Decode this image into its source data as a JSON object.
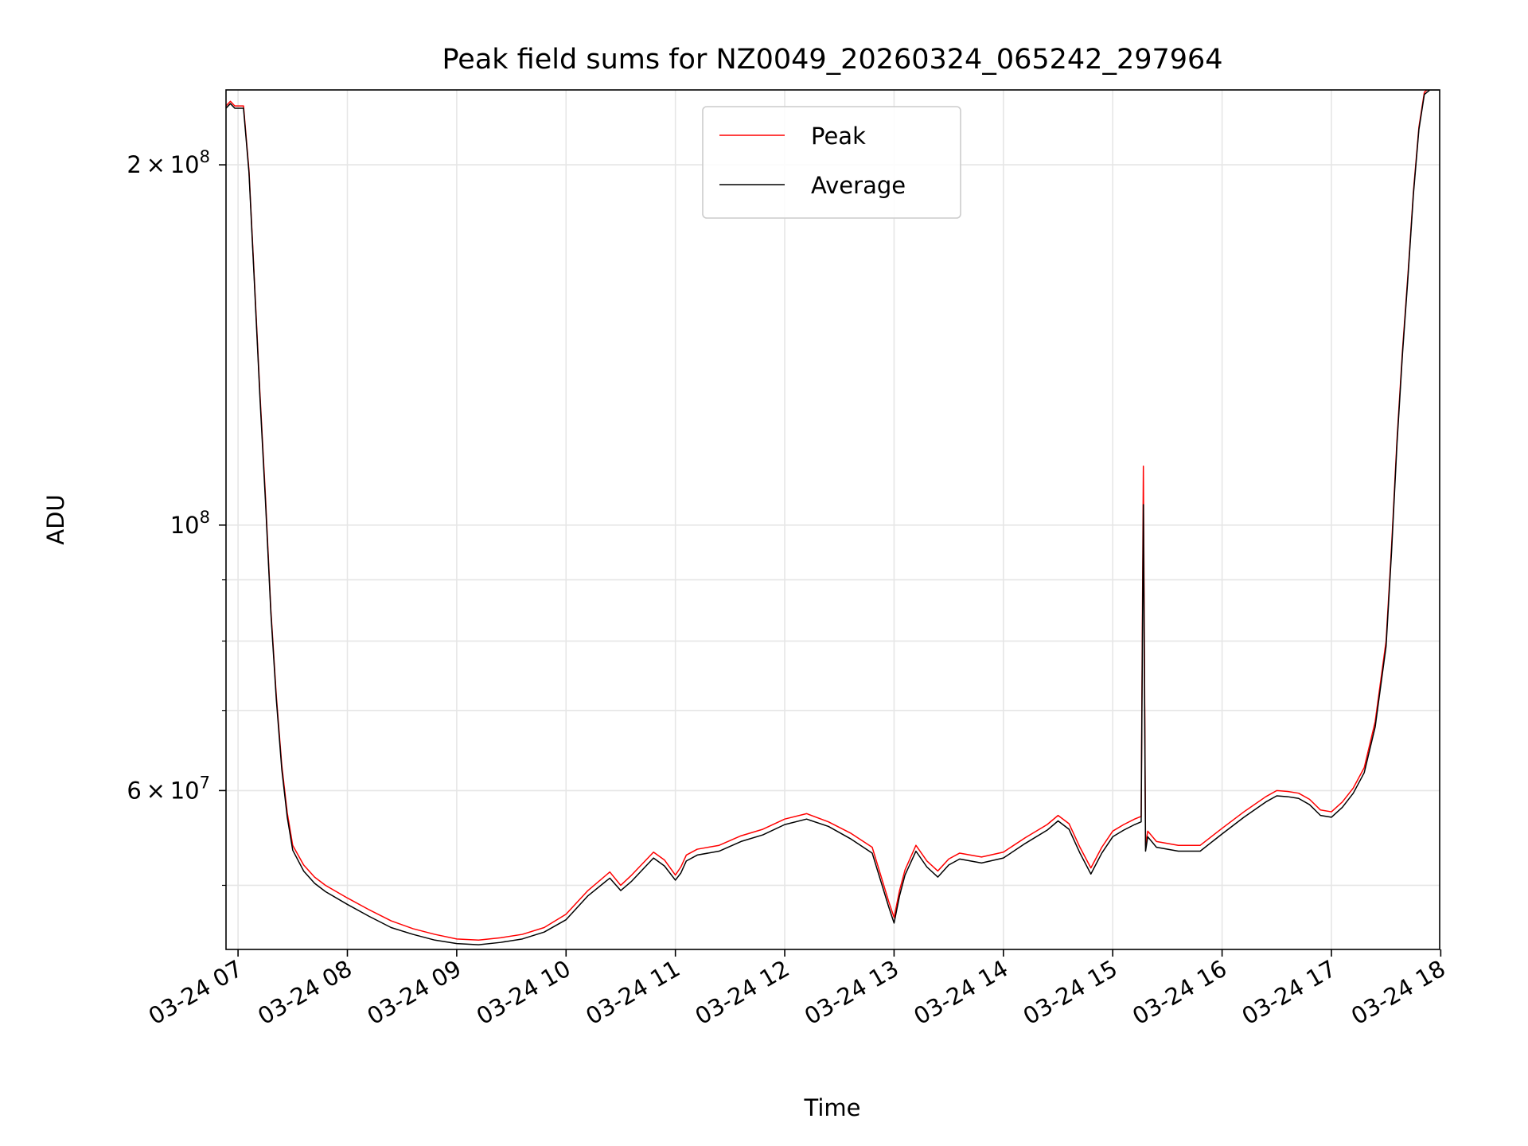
{
  "chart_data": {
    "type": "line",
    "title": "Peak field sums for NZ0049_20260324_065242_297964",
    "xlabel": "Time",
    "ylabel": "ADU",
    "yscale": "log",
    "grid": true,
    "legend_position": "upper-center",
    "xlim": [
      6.89,
      17.99
    ],
    "ylim": [
      44200000,
      231000000
    ],
    "x_unit": "hour of 2026-03-24",
    "x_ticks": [
      {
        "value": 7,
        "label": "03-24 07"
      },
      {
        "value": 8,
        "label": "03-24 08"
      },
      {
        "value": 9,
        "label": "03-24 09"
      },
      {
        "value": 10,
        "label": "03-24 10"
      },
      {
        "value": 11,
        "label": "03-24 11"
      },
      {
        "value": 12,
        "label": "03-24 12"
      },
      {
        "value": 13,
        "label": "03-24 13"
      },
      {
        "value": 14,
        "label": "03-24 14"
      },
      {
        "value": 15,
        "label": "03-24 15"
      },
      {
        "value": 16,
        "label": "03-24 16"
      },
      {
        "value": 17,
        "label": "03-24 17"
      },
      {
        "value": 18,
        "label": "03-24 18"
      }
    ],
    "y_major_ticks": [
      {
        "value": 60000000,
        "mantissa": "6",
        "base": "10",
        "exp": "7"
      },
      {
        "value": 100000000,
        "mantissa": "",
        "base": "10",
        "exp": "8"
      },
      {
        "value": 200000000,
        "mantissa": "2",
        "base": "10",
        "exp": "8"
      }
    ],
    "y_minor_ticks": [
      50000000,
      70000000,
      80000000,
      90000000
    ],
    "series": [
      {
        "name": "Peak",
        "color": "#ff0000",
        "x": [
          6.89,
          6.93,
          6.97,
          7.05,
          7.1,
          7.15,
          7.2,
          7.25,
          7.3,
          7.35,
          7.4,
          7.45,
          7.5,
          7.6,
          7.7,
          7.8,
          8.0,
          8.2,
          8.4,
          8.6,
          8.8,
          9.0,
          9.2,
          9.4,
          9.6,
          9.8,
          10.0,
          10.2,
          10.4,
          10.5,
          10.6,
          10.8,
          10.9,
          11.0,
          11.05,
          11.1,
          11.2,
          11.4,
          11.6,
          11.8,
          12.0,
          12.2,
          12.4,
          12.6,
          12.8,
          12.95,
          13.0,
          13.05,
          13.1,
          13.2,
          13.3,
          13.4,
          13.5,
          13.6,
          13.8,
          14.0,
          14.2,
          14.4,
          14.5,
          14.6,
          14.7,
          14.8,
          14.9,
          15.0,
          15.1,
          15.2,
          15.26,
          15.28,
          15.3,
          15.32,
          15.4,
          15.6,
          15.8,
          16.0,
          16.2,
          16.4,
          16.5,
          16.6,
          16.7,
          16.8,
          16.9,
          17.0,
          17.1,
          17.2,
          17.3,
          17.4,
          17.5,
          17.55,
          17.6,
          17.65,
          17.7,
          17.75,
          17.8,
          17.85,
          17.9,
          17.99
        ],
        "y": [
          224000000,
          226000000,
          224000000,
          224000000,
          198000000,
          160000000,
          129000000,
          106000000,
          85000000,
          72000000,
          63000000,
          57500000,
          54000000,
          52000000,
          50800000,
          50000000,
          48800000,
          47700000,
          46700000,
          46000000,
          45500000,
          45100000,
          45000000,
          45200000,
          45500000,
          46100000,
          47300000,
          49500000,
          51300000,
          50000000,
          51000000,
          53300000,
          52500000,
          51000000,
          51800000,
          53000000,
          53600000,
          54000000,
          55000000,
          55700000,
          56800000,
          57400000,
          56500000,
          55300000,
          53800000,
          48500000,
          47000000,
          49500000,
          51500000,
          54000000,
          52400000,
          51400000,
          52600000,
          53200000,
          52800000,
          53300000,
          54800000,
          56200000,
          57200000,
          56300000,
          53800000,
          51700000,
          53800000,
          55500000,
          56200000,
          56800000,
          57100000,
          112000000,
          54000000,
          55500000,
          54400000,
          54000000,
          54000000,
          55800000,
          57600000,
          59300000,
          60000000,
          59900000,
          59700000,
          59000000,
          57800000,
          57600000,
          58700000,
          60300000,
          62700000,
          68500000,
          80000000,
          96000000,
          118000000,
          140000000,
          162000000,
          190000000,
          215000000,
          230000000,
          232000000,
          232000000
        ]
      },
      {
        "name": "Average",
        "color": "#000000",
        "x": [
          6.89,
          6.93,
          6.97,
          7.05,
          7.1,
          7.15,
          7.2,
          7.25,
          7.3,
          7.35,
          7.4,
          7.45,
          7.5,
          7.6,
          7.7,
          7.8,
          8.0,
          8.2,
          8.4,
          8.6,
          8.8,
          9.0,
          9.2,
          9.4,
          9.6,
          9.8,
          10.0,
          10.2,
          10.4,
          10.5,
          10.6,
          10.8,
          10.9,
          11.0,
          11.05,
          11.1,
          11.2,
          11.4,
          11.6,
          11.8,
          12.0,
          12.2,
          12.4,
          12.6,
          12.8,
          12.95,
          13.0,
          13.05,
          13.1,
          13.2,
          13.3,
          13.4,
          13.5,
          13.6,
          13.8,
          14.0,
          14.2,
          14.4,
          14.5,
          14.6,
          14.7,
          14.8,
          14.9,
          15.0,
          15.1,
          15.2,
          15.26,
          15.28,
          15.3,
          15.32,
          15.4,
          15.6,
          15.8,
          16.0,
          16.2,
          16.4,
          16.5,
          16.6,
          16.7,
          16.8,
          16.9,
          17.0,
          17.1,
          17.2,
          17.3,
          17.4,
          17.5,
          17.55,
          17.6,
          17.65,
          17.7,
          17.75,
          17.8,
          17.85,
          17.9,
          17.99
        ],
        "y": [
          223000000,
          225000000,
          223000000,
          223000000,
          197000000,
          159000000,
          128000000,
          105000000,
          84500000,
          71500000,
          62500000,
          57000000,
          53500000,
          51400000,
          50200000,
          49400000,
          48200000,
          47100000,
          46100000,
          45500000,
          45000000,
          44700000,
          44600000,
          44800000,
          45100000,
          45700000,
          46800000,
          49000000,
          50700000,
          49500000,
          50400000,
          52700000,
          51900000,
          50500000,
          51200000,
          52400000,
          53000000,
          53400000,
          54400000,
          55100000,
          56200000,
          56800000,
          56000000,
          54700000,
          53200000,
          48000000,
          46500000,
          49000000,
          51000000,
          53400000,
          51800000,
          50800000,
          52000000,
          52600000,
          52200000,
          52700000,
          54200000,
          55600000,
          56600000,
          55700000,
          53200000,
          51100000,
          53200000,
          54900000,
          55600000,
          56200000,
          56500000,
          104000000,
          53400000,
          54900000,
          53800000,
          53400000,
          53400000,
          55200000,
          57000000,
          58700000,
          59400000,
          59300000,
          59100000,
          58400000,
          57200000,
          57000000,
          58100000,
          59700000,
          62100000,
          67800000,
          79200000,
          95000000,
          117000000,
          139000000,
          161000000,
          189000000,
          214000000,
          229000000,
          231000000,
          231000000
        ]
      }
    ]
  }
}
